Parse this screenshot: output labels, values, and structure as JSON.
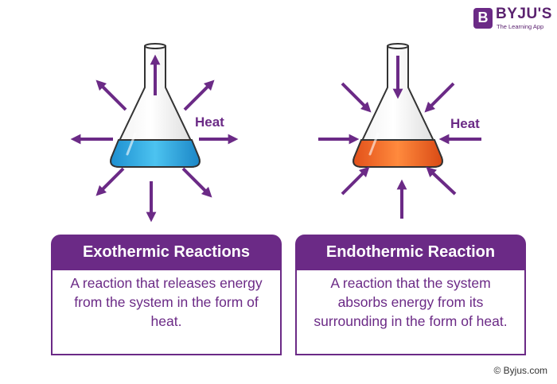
{
  "logo": {
    "badge": "B",
    "name": "BYJU'S",
    "tagline": "The Learning App"
  },
  "exothermic": {
    "heat_label": "Heat",
    "title": "Exothermic Reactions",
    "description": "A reaction that releases energy from the system in the form of heat.",
    "liquid_color": "#2aa8e0"
  },
  "endothermic": {
    "heat_label": "Heat",
    "title": "Endothermic Reaction",
    "description": "A reaction that the system absorbs energy from its surrounding in the form of heat.",
    "liquid_color": "#f26a1f"
  },
  "colors": {
    "accent": "#6b2a86"
  },
  "copyright": "© Byjus.com"
}
